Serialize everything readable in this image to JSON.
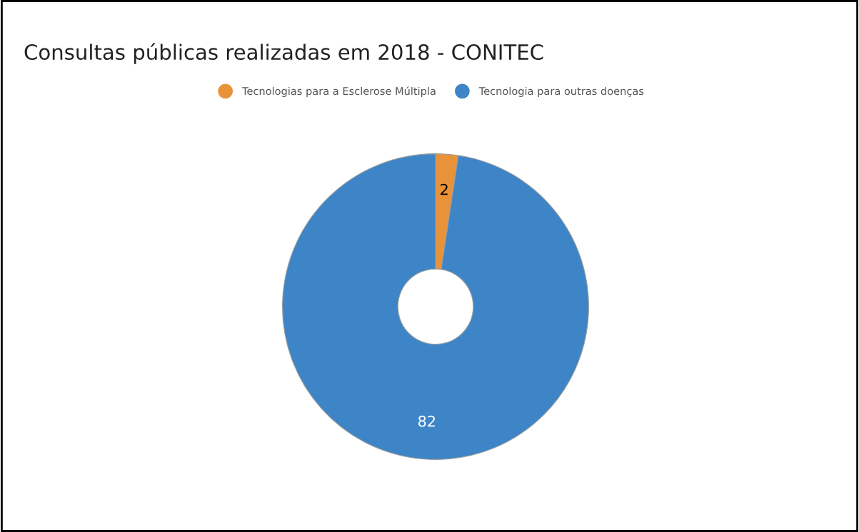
{
  "chart_data": {
    "type": "donut",
    "title": "Consultas públicas realizadas em 2018 - CONITEC",
    "categories": [
      "Tecnologias para a Esclerose Múltipla",
      "Tecnologia para outras doenças"
    ],
    "values": [
      2,
      82
    ],
    "colors": [
      "#e8923a",
      "#3d85c6"
    ],
    "data_labels": true,
    "legend": "top"
  }
}
